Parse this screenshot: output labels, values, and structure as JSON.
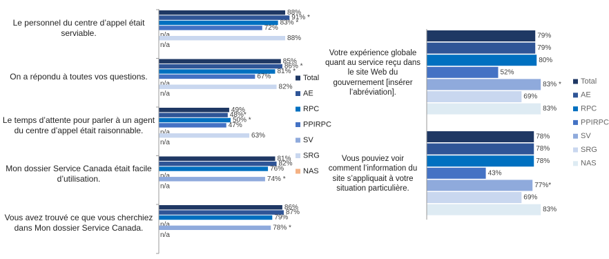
{
  "chart_data": [
    {
      "type": "bar",
      "orientation": "horizontal",
      "xlim": [
        0,
        100
      ],
      "categories": [
        "Le personnel du centre d’appel était serviable.",
        "On a répondu à toutes vos questions.",
        "Le temps d’attente pour parler à un agent du centre d’appel était raisonnable.",
        "Mon dossier Service Canada était facile d’utilisation.",
        "Vous avez trouvé ce que vous cherchiez dans Mon dossier Service Canada."
      ],
      "series": [
        {
          "name": "Total",
          "color": "#1f3864",
          "values": [
            88,
            85,
            49,
            81,
            86
          ],
          "value_labels": [
            "88%",
            "85%",
            "49%",
            "81%",
            "86%"
          ]
        },
        {
          "name": "AE",
          "color": "#2f5597",
          "values": [
            91,
            86,
            48,
            82,
            87
          ],
          "value_labels": [
            "91% *",
            "86% *",
            "48%*",
            "82%",
            "87%"
          ]
        },
        {
          "name": "RPC",
          "color": "#0070c0",
          "values": [
            83,
            81,
            50,
            76,
            79
          ],
          "value_labels": [
            "83% *",
            "81% *",
            "50% *",
            "76%",
            "79%"
          ]
        },
        {
          "name": "PPIRPC",
          "color": "#4472c4",
          "values": [
            72,
            67,
            47,
            null,
            null
          ],
          "value_labels": [
            "72%",
            "67%",
            "47%",
            "n/a",
            "n/a"
          ]
        },
        {
          "name": "SV",
          "color": "#8faadc",
          "values": [
            null,
            null,
            null,
            74,
            78
          ],
          "value_labels": [
            "n/a",
            "n/a",
            "n/a",
            "74% *",
            "78% *"
          ]
        },
        {
          "name": "SRG",
          "color": "#c9d7ef",
          "values": [
            88,
            82,
            63,
            null,
            null
          ],
          "value_labels": [
            "88%",
            "82%",
            "63%",
            "n/a",
            "n/a"
          ]
        },
        {
          "name": "NAS",
          "color": "#f4b183",
          "values": [
            null,
            null,
            null,
            null,
            null
          ],
          "value_labels": [
            "n/a",
            "n/a",
            "n/a",
            null,
            null
          ]
        }
      ]
    },
    {
      "type": "bar",
      "orientation": "horizontal",
      "xlim": [
        0,
        100
      ],
      "categories": [
        "Votre expérience globale quant au service reçu dans le site Web du gouvernement [insérer l’abréviation].",
        "Vous pouviez voir comment l’information du site s’appliquait à votre situation particulière."
      ],
      "series": [
        {
          "name": "Total",
          "color": "#1f3864",
          "values": [
            79,
            78
          ],
          "value_labels": [
            "79%",
            "78%"
          ]
        },
        {
          "name": "AE",
          "color": "#2f5597",
          "values": [
            79,
            78
          ],
          "value_labels": [
            "79%",
            "78%"
          ]
        },
        {
          "name": "RPC",
          "color": "#0070c0",
          "values": [
            80,
            78
          ],
          "value_labels": [
            "80%",
            "78%"
          ]
        },
        {
          "name": "PPIRPC",
          "color": "#4472c4",
          "values": [
            52,
            43
          ],
          "value_labels": [
            "52%",
            "43%"
          ]
        },
        {
          "name": "SV",
          "color": "#8faadc",
          "values": [
            83,
            77
          ],
          "value_labels": [
            "83% *",
            "77%*"
          ]
        },
        {
          "name": "SRG",
          "color": "#c9d7ef",
          "values": [
            69,
            69
          ],
          "value_labels": [
            "69%",
            "69%"
          ]
        },
        {
          "name": "NAS",
          "color": "#deebf3",
          "values": [
            83,
            83
          ],
          "value_labels": [
            "83%",
            "83%"
          ]
        }
      ]
    }
  ]
}
